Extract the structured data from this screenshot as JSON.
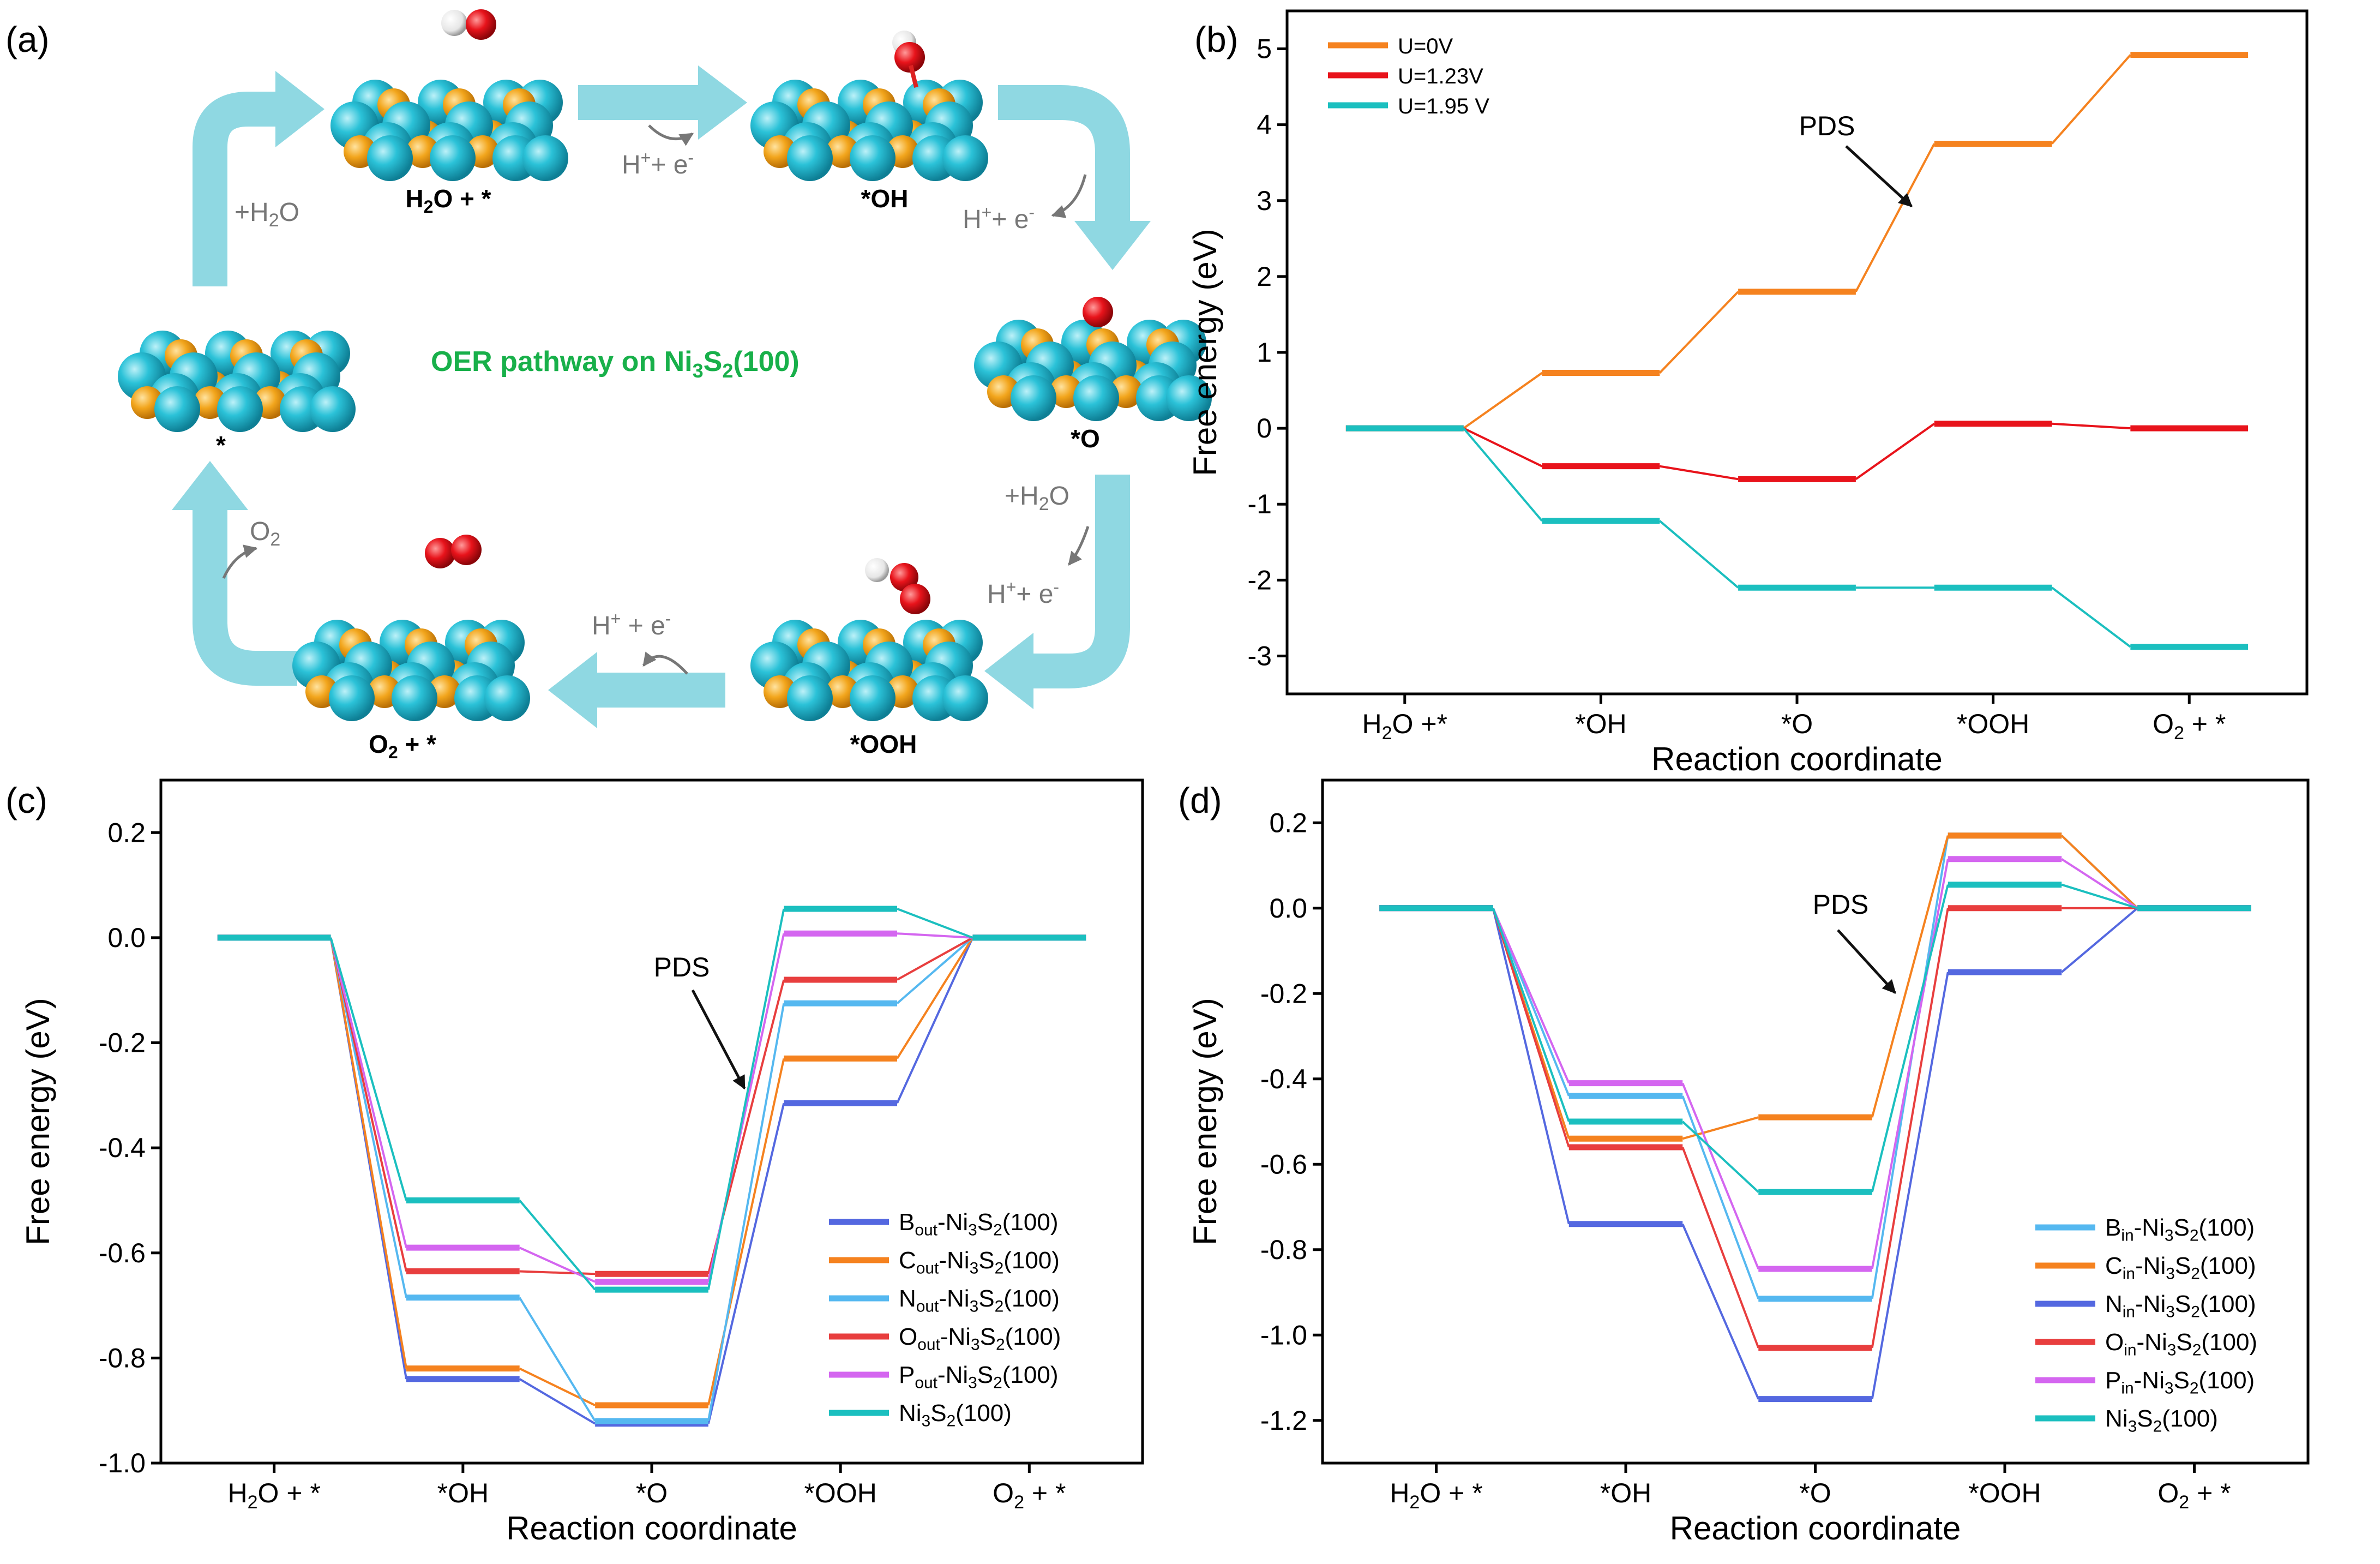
{
  "panel_labels": [
    "(a)",
    "(b)",
    "(c)",
    "(d)"
  ],
  "panel_a": {
    "title_main": "OER pathway on Ni",
    "title_sub3": "3",
    "title_S": "S",
    "title_sub2": "2",
    "title_tail": "(100)",
    "states": {
      "bare": "*",
      "h2o": "H2O + *",
      "oh": "*OH",
      "o": "*O",
      "ooh": "*OOH",
      "o2": "O2 + *"
    },
    "steps": {
      "add_h2o_1": "+H2O",
      "he_1": "H+ + e-",
      "he_2": "H+ + e-",
      "add_h2o_2": "+H2O",
      "he_3": "H+ + e-",
      "he_4": "H+ + e-",
      "o2_release": "O2"
    },
    "colors": {
      "ni": "#2bbfd6",
      "s": "#f2a51c",
      "o": "#e8131b",
      "h": "#eeeeee",
      "arrow": "#8fd8e2",
      "title": "#18b04a"
    }
  },
  "chart_data": [
    {
      "panel": "b",
      "type": "line",
      "categories": [
        "H2O +*",
        "*OH",
        "*O",
        "*OOH",
        "O2 + *"
      ],
      "xlabel": "Reaction coordinate",
      "ylabel": "Free energy (eV)",
      "ylim": [
        -3.5,
        5.5
      ],
      "yticks": [
        -3,
        -2,
        -1,
        0,
        1,
        2,
        3,
        4,
        5
      ],
      "ytick_labels": [
        "-3",
        "-2",
        "-1",
        "0",
        "1",
        "2",
        "3",
        "4",
        "5"
      ],
      "legend": "top-left",
      "annotation": "PDS",
      "series": [
        {
          "name": "U=0V",
          "color": "#f5821f",
          "values": [
            0,
            0.73,
            1.8,
            3.75,
            4.92
          ]
        },
        {
          "name": "U=1.23V",
          "color": "#e8131b",
          "values": [
            0,
            -0.5,
            -0.67,
            0.06,
            0
          ]
        },
        {
          "name": "U=1.95 V",
          "color": "#1bbfbf",
          "values": [
            0,
            -1.22,
            -2.1,
            -2.1,
            -2.88
          ]
        }
      ]
    },
    {
      "panel": "c",
      "type": "line",
      "categories": [
        "H2O + *",
        "*OH",
        "*O",
        "*OOH",
        "O2 + *"
      ],
      "xlabel": "Reaction coordinate",
      "ylabel": "Free energy (eV)",
      "ylim": [
        -1.0,
        0.3
      ],
      "yticks": [
        -1.0,
        -0.8,
        -0.6,
        -0.4,
        -0.2,
        0.0,
        0.2
      ],
      "ytick_labels": [
        "-1.0",
        "-0.8",
        "-0.6",
        "-0.4",
        "-0.2",
        "0.0",
        "0.2"
      ],
      "legend": "bottom-right",
      "annotation": "PDS",
      "series": [
        {
          "name": "Bout-Ni3S2(100)",
          "label_main": "B",
          "label_sub": "out",
          "color": "#5468e0",
          "values": [
            0,
            -0.84,
            -0.925,
            -0.315,
            0
          ]
        },
        {
          "name": "Cout-Ni3S2(100)",
          "label_main": "C",
          "label_sub": "out",
          "color": "#f5821f",
          "values": [
            0,
            -0.82,
            -0.89,
            -0.23,
            0
          ]
        },
        {
          "name": "Nout-Ni3S2(100)",
          "label_main": "N",
          "label_sub": "out",
          "color": "#55b8f0",
          "values": [
            0,
            -0.685,
            -0.92,
            -0.125,
            0
          ]
        },
        {
          "name": "Oout-Ni3S2(100)",
          "label_main": "O",
          "label_sub": "out",
          "color": "#e83e3e",
          "values": [
            0,
            -0.635,
            -0.64,
            -0.08,
            0
          ]
        },
        {
          "name": "Pout-Ni3S2(100)",
          "label_main": "P",
          "label_sub": "out",
          "color": "#d466f0",
          "values": [
            0,
            -0.59,
            -0.655,
            0.008,
            0
          ]
        },
        {
          "name": "Ni3S2(100)",
          "label_main": "",
          "label_sub": "",
          "color": "#1bbfbf",
          "values": [
            0,
            -0.5,
            -0.67,
            0.055,
            0
          ]
        }
      ]
    },
    {
      "panel": "d",
      "type": "line",
      "categories": [
        "H2O + *",
        "*OH",
        "*O",
        "*OOH",
        "O2 + *"
      ],
      "xlabel": "Reaction coordinate",
      "ylabel": "Free energy (eV)",
      "ylim": [
        -1.3,
        0.3
      ],
      "yticks": [
        -1.2,
        -1.0,
        -0.8,
        -0.6,
        -0.4,
        -0.2,
        0.0,
        0.2
      ],
      "ytick_labels": [
        "-1.2",
        "-1.0",
        "-0.8",
        "-0.6",
        "-0.4",
        "-0.2",
        "0.0",
        "0.2"
      ],
      "legend": "bottom-right",
      "annotation": "PDS",
      "series": [
        {
          "name": "Bin-Ni3S2(100)",
          "label_main": "B",
          "label_sub": "in",
          "color": "#55b8f0",
          "values": [
            0,
            -0.44,
            -0.915,
            0.17,
            0
          ]
        },
        {
          "name": "Cin-Ni3S2(100)",
          "label_main": "C",
          "label_sub": "in",
          "color": "#f5821f",
          "values": [
            0,
            -0.54,
            -0.49,
            0.17,
            0
          ]
        },
        {
          "name": "Nin-Ni3S2(100)",
          "label_main": "N",
          "label_sub": "in",
          "color": "#5468e0",
          "values": [
            0,
            -0.74,
            -1.15,
            -0.15,
            0
          ]
        },
        {
          "name": "Oin-Ni3S2(100)",
          "label_main": "O",
          "label_sub": "in",
          "color": "#e83e3e",
          "values": [
            0,
            -0.56,
            -1.03,
            0.0,
            0
          ]
        },
        {
          "name": "Pin-Ni3S2(100)",
          "label_main": "P",
          "label_sub": "in",
          "color": "#d466f0",
          "values": [
            0,
            -0.41,
            -0.845,
            0.115,
            0
          ]
        },
        {
          "name": "Ni3S2(100)",
          "label_main": "",
          "label_sub": "",
          "color": "#1bbfbf",
          "values": [
            0,
            -0.5,
            -0.665,
            0.055,
            0
          ]
        }
      ]
    }
  ]
}
